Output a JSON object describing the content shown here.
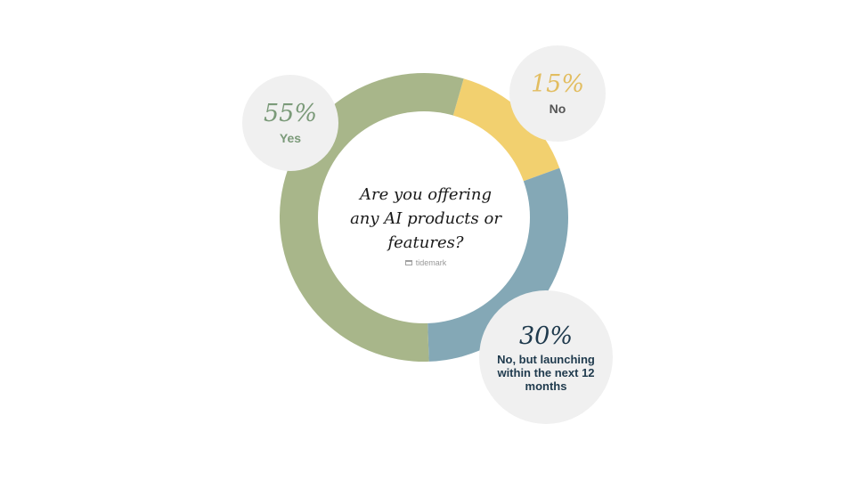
{
  "chart_data": {
    "type": "pie",
    "style": "donut",
    "title": "Are you offering any AI products or features?",
    "categories": [
      "Yes",
      "No",
      "No, but launching within the next 12 months"
    ],
    "values": [
      55,
      15,
      30
    ],
    "value_labels": [
      "55%",
      "15%",
      "30%"
    ],
    "start_angle_deg": 16,
    "order": [
      "No",
      "No, but launching within the next 12 months",
      "Yes"
    ],
    "legend": "none"
  },
  "slices": {
    "yes": {
      "pct_text": "55%",
      "label": "Yes",
      "color": "#a8b68a",
      "text_color": "#7b9a79"
    },
    "no": {
      "pct_text": "15%",
      "label": "No",
      "color": "#f2d06f",
      "text_color": "#e2bd60",
      "label_color": "#555555"
    },
    "launching": {
      "pct_text": "30%",
      "label": "No, but launching within the next 12 months",
      "color": "#84a8b6",
      "text_color": "#1f3a4d"
    }
  },
  "center": {
    "question": "Are you offering any AI products or features?",
    "brand": "tidemark"
  },
  "colors": {
    "bubble_bg": "#f0f0f0",
    "background": "#ffffff"
  }
}
